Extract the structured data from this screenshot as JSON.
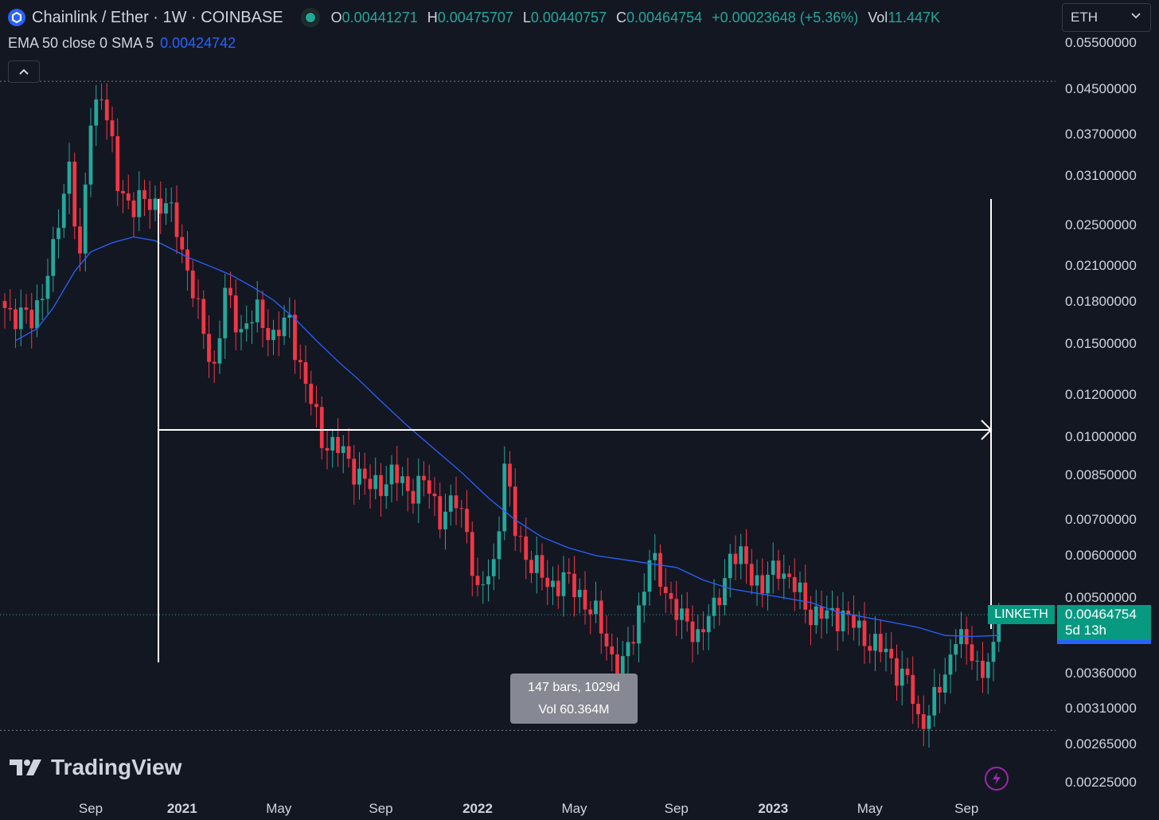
{
  "header": {
    "symbol_title": "Chainlink / Ether · 1W · COINBASE",
    "open_key": "O",
    "open": "0.00441271",
    "high_key": "H",
    "high": "0.00475707",
    "low_key": "L",
    "low": "0.00440757",
    "close_key": "C",
    "close": "0.00464754",
    "change": "+0.00023648 (+5.36%)",
    "vol_key": "Vol",
    "vol": "11.447K"
  },
  "indicator": {
    "label": "EMA 50 close 0 SMA 5",
    "value": "0.00424742"
  },
  "currency_select": {
    "value": "ETH"
  },
  "last_price": {
    "symbol": "LINKETH",
    "price": "0.00464754",
    "countdown": "5d 13h"
  },
  "measure_tooltip": {
    "line1": "147 bars, 1029d",
    "line2": "Vol 60.364M"
  },
  "branding": {
    "logo_text": "TradingView"
  },
  "colors": {
    "background": "#131722",
    "up": "#26a69a",
    "down": "#f23645",
    "ema": "#2962ff",
    "axis_text": "#d1d4dc"
  },
  "chart_data": {
    "type": "candlestick",
    "scale": "log",
    "ylim": [
      0.0021,
      0.057
    ],
    "price_ticks": [
      "0.05500000",
      "0.04500000",
      "0.03700000",
      "0.03100000",
      "0.02500000",
      "0.02100000",
      "0.01800000",
      "0.01500000",
      "0.01200000",
      "0.01000000",
      "0.00850000",
      "0.00700000",
      "0.00600000",
      "0.00500000",
      "0.00360000",
      "0.00310000",
      "0.00265000",
      "0.00225000"
    ],
    "time_ticks": [
      {
        "label": "Sep",
        "bold": false
      },
      {
        "label": "2021",
        "bold": true
      },
      {
        "label": "May",
        "bold": false
      },
      {
        "label": "Sep",
        "bold": false
      },
      {
        "label": "2022",
        "bold": true
      },
      {
        "label": "May",
        "bold": false
      },
      {
        "label": "Sep",
        "bold": false
      },
      {
        "label": "2023",
        "bold": true
      },
      {
        "label": "May",
        "bold": false
      },
      {
        "label": "Sep",
        "bold": false
      }
    ],
    "close_path": [
      [
        0,
        0.0175
      ],
      [
        5,
        0.0165
      ],
      [
        9,
        0.022
      ],
      [
        12,
        0.033
      ],
      [
        14,
        0.021
      ],
      [
        16,
        0.04
      ],
      [
        18,
        0.045
      ],
      [
        21,
        0.03
      ],
      [
        24,
        0.027
      ],
      [
        27,
        0.028
      ],
      [
        30,
        0.027
      ],
      [
        32,
        0.025
      ],
      [
        36,
        0.017
      ],
      [
        39,
        0.0135
      ],
      [
        41,
        0.0185
      ],
      [
        44,
        0.016
      ],
      [
        47,
        0.017
      ],
      [
        50,
        0.0155
      ],
      [
        53,
        0.0165
      ],
      [
        56,
        0.0125
      ],
      [
        59,
        0.01
      ],
      [
        62,
        0.0095
      ],
      [
        65,
        0.0088
      ],
      [
        68,
        0.008
      ],
      [
        72,
        0.0085
      ],
      [
        75,
        0.008
      ],
      [
        78,
        0.0082
      ],
      [
        81,
        0.0072
      ],
      [
        84,
        0.0075
      ],
      [
        86,
        0.0068
      ],
      [
        88,
        0.005
      ],
      [
        91,
        0.0058
      ],
      [
        93,
        0.0088
      ],
      [
        95,
        0.0067
      ],
      [
        98,
        0.0058
      ],
      [
        101,
        0.0053
      ],
      [
        104,
        0.0054
      ],
      [
        107,
        0.0051
      ],
      [
        110,
        0.0046
      ],
      [
        113,
        0.0039
      ],
      [
        115,
        0.0037
      ],
      [
        117,
        0.0043
      ],
      [
        120,
        0.0059
      ],
      [
        123,
        0.0052
      ],
      [
        126,
        0.0045
      ],
      [
        129,
        0.0043
      ],
      [
        132,
        0.0047
      ],
      [
        135,
        0.006
      ],
      [
        138,
        0.0058
      ],
      [
        141,
        0.0052
      ],
      [
        144,
        0.0058
      ],
      [
        147,
        0.0052
      ],
      [
        150,
        0.0047
      ],
      [
        153,
        0.0046
      ],
      [
        156,
        0.0047
      ],
      [
        159,
        0.0043
      ],
      [
        162,
        0.0041
      ],
      [
        165,
        0.0038
      ],
      [
        168,
        0.0035
      ],
      [
        170,
        0.0029
      ],
      [
        172,
        0.0031
      ],
      [
        175,
        0.0035
      ],
      [
        177,
        0.0044
      ],
      [
        179,
        0.004
      ],
      [
        181,
        0.0037
      ],
      [
        184,
        0.0039
      ],
      [
        185,
        0.0046
      ]
    ],
    "ema_series": [
      [
        2,
        0.0152
      ],
      [
        6,
        0.016
      ],
      [
        9,
        0.0175
      ],
      [
        13,
        0.0205
      ],
      [
        16,
        0.0223
      ],
      [
        20,
        0.0232
      ],
      [
        24,
        0.0238
      ],
      [
        28,
        0.0234
      ],
      [
        31,
        0.0226
      ],
      [
        34,
        0.0218
      ],
      [
        38,
        0.021
      ],
      [
        42,
        0.0202
      ],
      [
        46,
        0.0192
      ],
      [
        50,
        0.0181
      ],
      [
        54,
        0.0167
      ],
      [
        58,
        0.0152
      ],
      [
        62,
        0.0139
      ],
      [
        66,
        0.0128
      ],
      [
        70,
        0.0117
      ],
      [
        75,
        0.0105
      ],
      [
        80,
        0.0095
      ],
      [
        85,
        0.0086
      ],
      [
        90,
        0.0077
      ],
      [
        95,
        0.007
      ],
      [
        100,
        0.0065
      ],
      [
        105,
        0.0062
      ],
      [
        110,
        0.006
      ],
      [
        115,
        0.0059
      ],
      [
        120,
        0.0058
      ],
      [
        125,
        0.0057
      ],
      [
        130,
        0.0054
      ],
      [
        135,
        0.0052
      ],
      [
        140,
        0.0051
      ],
      [
        145,
        0.005
      ],
      [
        150,
        0.0049
      ],
      [
        155,
        0.0047
      ],
      [
        160,
        0.0046
      ],
      [
        165,
        0.0045
      ],
      [
        170,
        0.0044
      ],
      [
        175,
        0.00425
      ],
      [
        180,
        0.00423
      ],
      [
        185,
        0.00425
      ]
    ],
    "measure": {
      "bars": 147,
      "days": 1029
    },
    "ema_label": "EMA 50"
  }
}
